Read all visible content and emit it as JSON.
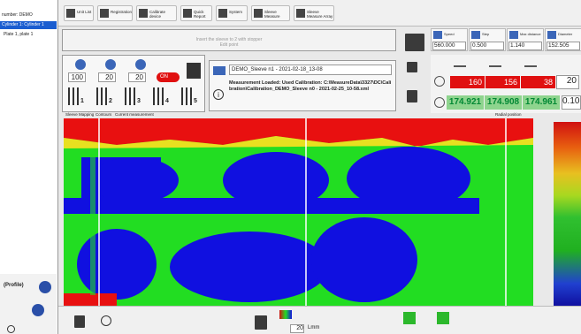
{
  "sidebar": {
    "title": "number: DEMO",
    "items": [
      "Cylinder 1: Cylinder 1",
      "Plate 1, plate 1"
    ],
    "footer": "(Profile)"
  },
  "toolbar": [
    "Unit List",
    "Registration",
    "Calibrate device",
    "Quick Report",
    "System",
    "Sleeve Measure",
    "Sleeve Measure Array"
  ],
  "message": {
    "line1": "Insert the sleeve to 2 with stopper",
    "line2": "Edit point"
  },
  "params": [
    {
      "label": "Speed",
      "value": "560.000"
    },
    {
      "label": "Step",
      "value": "0.500"
    },
    {
      "label": "Max distance",
      "value": "1.140"
    },
    {
      "label": "Diameter",
      "value": "152.505"
    }
  ],
  "settings": {
    "values": [
      "100",
      "20",
      "20"
    ],
    "toggle": "ON",
    "slots": [
      "1",
      "2",
      "3",
      "4",
      "5"
    ]
  },
  "file": {
    "name": "DEMO_Sleeve n1 - 2021-02-18_13-08",
    "info": "Measurement Loaded: Used Calibration: C:\\MeasureData\\3327\\DC\\Calibration\\Calibration_DEMO_Sleeve n0 - 2021-02-25_10-58.xml"
  },
  "readings": {
    "red": [
      "160",
      "156",
      "38"
    ],
    "red_input": "20",
    "green": [
      "174.921",
      "174.908",
      "174.961"
    ],
    "green_input": "0.10"
  },
  "map": {
    "tabs": [
      "Sleeve Mapping",
      "Contours",
      "Current measurement"
    ],
    "scale_title": "Radial position"
  },
  "bottom": {
    "value": "20",
    "unit": "Lmm"
  }
}
